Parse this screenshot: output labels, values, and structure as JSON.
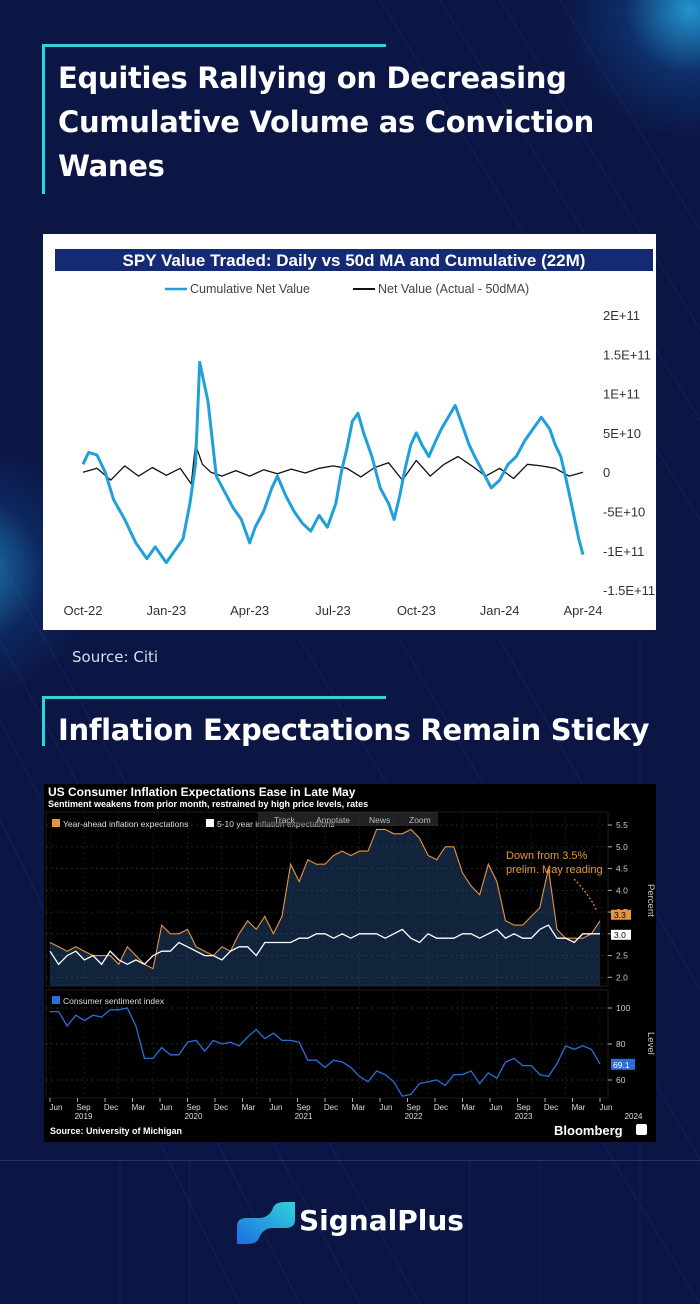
{
  "section1": {
    "title_lines": [
      "Equities Rallying on Decreasing",
      "Cumulative Volume as Conviction",
      "Wanes"
    ]
  },
  "section2": {
    "title": "Inflation Expectations Remain Sticky"
  },
  "source1": "Source: Citi",
  "brand": {
    "name": "SignalPlus",
    "accent": "#2fd3dc",
    "background": "#0b1645"
  },
  "chart_data": [
    {
      "type": "line",
      "title": "SPY Value Traded: Daily vs 50d MA and Cumulative (22M)",
      "legend": [
        "Cumulative Net Value",
        "Net Value (Actual - 50dMA)"
      ],
      "legend_position": "top",
      "x_tick_labels": [
        "Oct-22",
        "Jan-23",
        "Apr-23",
        "Jul-23",
        "Oct-23",
        "Jan-24",
        "Apr-24"
      ],
      "y_tick_labels": [
        "2E+11",
        "1.5E+11",
        "1E+11",
        "5E+10",
        "0",
        "-5E+10",
        "-1E+11",
        "-1.5E+11"
      ],
      "y_ticks": [
        200,
        150,
        100,
        50,
        0,
        -50,
        -100,
        -150
      ],
      "ylim": [
        -150,
        200
      ],
      "y_unit_note": "values in E+9",
      "x_months": [
        0,
        1,
        2,
        3,
        4,
        5,
        6,
        7,
        8,
        9,
        10,
        11,
        12,
        13,
        14,
        15,
        16,
        17,
        18,
        19
      ],
      "series": [
        {
          "name": "Cumulative Net Value",
          "color": "#1fa0d8",
          "x": [
            0.0,
            0.2,
            0.5,
            0.8,
            1.1,
            1.5,
            1.9,
            2.3,
            2.6,
            3.0,
            3.3,
            3.6,
            3.85,
            4.05,
            4.2,
            4.5,
            4.8,
            5.1,
            5.4,
            5.7,
            6.0,
            6.2,
            6.5,
            6.8,
            7.0,
            7.3,
            7.6,
            7.9,
            8.2,
            8.5,
            8.8,
            9.1,
            9.3,
            9.5,
            9.7,
            9.9,
            10.1,
            10.4,
            10.7,
            11.0,
            11.2,
            11.4,
            11.6,
            11.8,
            12.0,
            12.2,
            12.45,
            12.7,
            12.9,
            13.15,
            13.4,
            13.65,
            13.9,
            14.1,
            14.4,
            14.7,
            15.0,
            15.3,
            15.6,
            15.9,
            16.2,
            16.5,
            16.8,
            17.0,
            17.2,
            17.4,
            17.55,
            17.7,
            17.85,
            18.0
          ],
          "values": [
            10,
            25,
            22,
            0,
            -35,
            -60,
            -90,
            -110,
            -95,
            -115,
            -100,
            -85,
            -40,
            10,
            140,
            90,
            -5,
            -25,
            -45,
            -60,
            -90,
            -70,
            -50,
            -20,
            -5,
            -30,
            -50,
            -65,
            -75,
            -55,
            -70,
            -40,
            0,
            30,
            65,
            75,
            50,
            20,
            -20,
            -40,
            -60,
            -30,
            5,
            35,
            50,
            35,
            20,
            40,
            55,
            70,
            85,
            60,
            35,
            20,
            0,
            -20,
            -10,
            10,
            20,
            40,
            55,
            70,
            55,
            35,
            20,
            -10,
            -35,
            -60,
            -85,
            -105
          ]
        },
        {
          "name": "Net Value (Actual - 50dMA)",
          "color": "#111111",
          "x": [
            0.0,
            0.5,
            1.0,
            1.5,
            2.0,
            2.5,
            3.0,
            3.5,
            3.9,
            4.05,
            4.3,
            4.6,
            5.0,
            5.5,
            6.0,
            6.5,
            7.0,
            7.5,
            8.0,
            8.5,
            9.0,
            9.5,
            10.0,
            10.5,
            11.0,
            11.5,
            12.0,
            12.5,
            13.0,
            13.5,
            14.0,
            14.5,
            15.0,
            15.5,
            16.0,
            16.5,
            17.0,
            17.5,
            18.0
          ],
          "values": [
            0,
            5,
            -10,
            8,
            -5,
            6,
            -4,
            5,
            -15,
            35,
            10,
            0,
            -5,
            2,
            -5,
            3,
            -2,
            4,
            -1,
            5,
            8,
            5,
            -6,
            6,
            12,
            -10,
            15,
            -5,
            10,
            20,
            8,
            -5,
            5,
            -8,
            10,
            8,
            5,
            -5,
            0
          ]
        }
      ]
    },
    {
      "type": "line",
      "title": "US Consumer Inflation Expectations Ease in Late May",
      "subtitle": "Sentiment weakens from prior month, restrained by high price levels, rates",
      "source": "Source: University of Michigan",
      "brand_label": "Bloomberg",
      "toolbar": [
        "Track",
        "Annotate",
        "News",
        "Zoom"
      ],
      "annotation": "Down from 3.5% prelim. May reading",
      "x_tick_months": [
        "Jun",
        "Sep",
        "Dec",
        "Mar",
        "Jun",
        "Sep",
        "Dec",
        "Mar",
        "Jun",
        "Sep",
        "Dec",
        "Mar",
        "Jun",
        "Sep",
        "Dec",
        "Mar",
        "Jun",
        "Sep",
        "Dec",
        "Mar",
        "Jun"
      ],
      "x_tick_years": [
        "2019",
        "2020",
        "2021",
        "2022",
        "2023",
        "2024"
      ],
      "panels": [
        {
          "ylabel": "Percent",
          "ylim": [
            1.8,
            5.8
          ],
          "y_ticks": [
            2.0,
            2.5,
            3.0,
            3.5,
            4.0,
            4.5,
            5.0,
            5.5
          ],
          "y_tick_labels": [
            "2.0",
            "2.5",
            "3.0",
            "3.5",
            "4.0",
            "4.5",
            "5.0",
            "5.5"
          ],
          "series": [
            {
              "name": "Year-ahead inflation expectations",
              "color": "#e8943a",
              "last_label": "3.3",
              "values": [
                2.8,
                2.7,
                2.6,
                2.7,
                2.6,
                2.5,
                2.5,
                2.5,
                2.3,
                2.7,
                2.5,
                2.3,
                2.2,
                3.2,
                3.0,
                3.0,
                3.1,
                2.7,
                2.6,
                2.5,
                2.7,
                2.6,
                3.0,
                3.3,
                3.1,
                3.4,
                3.0,
                3.4,
                4.6,
                4.2,
                4.7,
                4.6,
                4.6,
                4.8,
                4.9,
                4.8,
                4.9,
                4.9,
                5.4,
                5.4,
                5.3,
                5.3,
                5.4,
                5.2,
                4.8,
                4.7,
                5.0,
                5.0,
                4.4,
                4.1,
                3.9,
                4.6,
                4.2,
                3.3,
                3.2,
                3.2,
                3.4,
                3.6,
                4.5,
                3.1,
                2.9,
                2.9,
                2.9,
                3.0,
                3.3
              ]
            },
            {
              "name": "5-10 year inflation expectations",
              "color": "#ffffff",
              "last_label": "3.0",
              "values": [
                2.6,
                2.3,
                2.5,
                2.6,
                2.4,
                2.5,
                2.3,
                2.6,
                2.4,
                2.3,
                2.4,
                2.3,
                2.5,
                2.6,
                2.6,
                2.8,
                2.7,
                2.6,
                2.5,
                2.5,
                2.4,
                2.6,
                2.7,
                2.7,
                2.5,
                2.8,
                2.8,
                2.8,
                2.8,
                2.9,
                2.9,
                3.0,
                3.0,
                2.9,
                3.0,
                2.9,
                3.0,
                3.0,
                3.0,
                2.9,
                3.0,
                3.1,
                2.9,
                2.8,
                3.0,
                2.9,
                2.9,
                2.9,
                3.0,
                3.0,
                2.9,
                3.0,
                3.1,
                2.9,
                3.0,
                2.9,
                2.9,
                3.1,
                3.2,
                2.9,
                2.9,
                2.8,
                3.0,
                3.0,
                3.0
              ]
            }
          ]
        },
        {
          "ylabel": "Level",
          "ylim": [
            50,
            110
          ],
          "y_ticks": [
            60,
            80,
            100
          ],
          "y_tick_labels": [
            "60",
            "80",
            "100"
          ],
          "series": [
            {
              "name": "Consumer sentiment index",
              "color": "#2a6fd8",
              "last_label": "69.1",
              "values": [
                98,
                98,
                90,
                96,
                93,
                96,
                95,
                99,
                99,
                100,
                90,
                72,
                72,
                78,
                74,
                74,
                81,
                82,
                76,
                82,
                80,
                81,
                79,
                84,
                88,
                83,
                86,
                82,
                82,
                81,
                71,
                71,
                67,
                71,
                70,
                67,
                62,
                59,
                65,
                63,
                59,
                51,
                52,
                58,
                59,
                60,
                57,
                63,
                63,
                65,
                58,
                64,
                61,
                70,
                72,
                68,
                68,
                63,
                62,
                69,
                79,
                77,
                79,
                77,
                69
              ]
            }
          ]
        }
      ]
    }
  ]
}
